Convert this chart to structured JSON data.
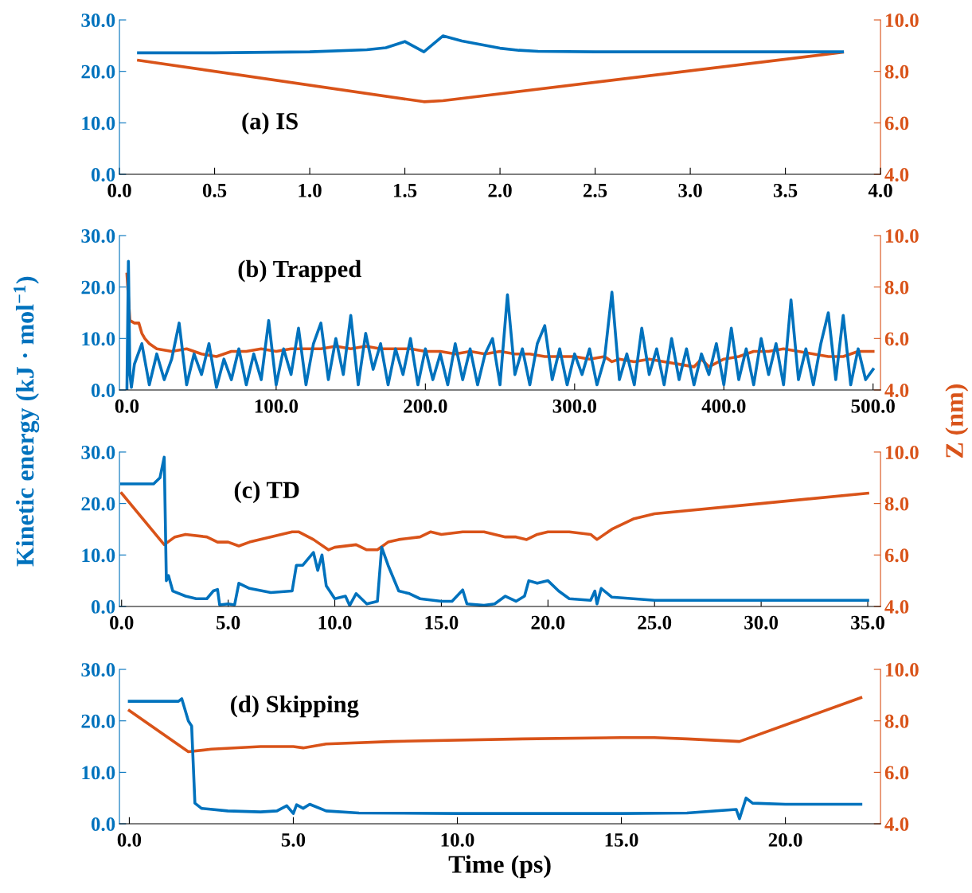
{
  "chart_data": [
    {
      "type": "line",
      "annotations": [
        "(a) IS"
      ],
      "xlim": [
        0,
        4
      ],
      "xticks": [
        {
          "value": 0,
          "label": "0.0"
        },
        0.5,
        {
          "value": 1,
          "label": "1.0"
        },
        1.5,
        {
          "value": 2,
          "label": "2.0"
        },
        2.5,
        {
          "value": 3,
          "label": "3.0"
        },
        3.5,
        {
          "value": 4,
          "label": "4.0"
        }
      ],
      "ylim": [
        0,
        30
      ],
      "yticks": [
        {
          "value": 0,
          "label": "0.0"
        },
        {
          "value": 10,
          "label": "10.0"
        },
        {
          "value": 20,
          "label": "20.0"
        },
        {
          "value": 30,
          "label": "30.0"
        }
      ],
      "y2lim": [
        4,
        10
      ],
      "y2ticks": [
        {
          "value": 4,
          "label": "4.0"
        },
        {
          "value": 6,
          "label": "6.0"
        },
        {
          "value": 8,
          "label": "8.0"
        },
        {
          "value": 10,
          "label": "10.0"
        }
      ],
      "grid": false,
      "series": [
        {
          "color": "#0072bd",
          "x": [
            0.1,
            0.5,
            1.0,
            1.3,
            1.4,
            1.5,
            1.6,
            1.7,
            1.8,
            1.9,
            2.0,
            2.1,
            2.2,
            2.5,
            3.0,
            3.8
          ],
          "values": [
            23.6,
            23.6,
            23.8,
            24.2,
            24.6,
            25.8,
            23.8,
            26.9,
            25.9,
            25.2,
            24.5,
            24.1,
            23.9,
            23.8,
            23.8,
            23.8
          ]
        },
        {
          "color": "#d95319",
          "axis": "y2",
          "x": [
            0.1,
            1.6,
            1.7,
            3.8
          ],
          "values": [
            8.43,
            6.82,
            6.86,
            8.74
          ]
        }
      ]
    },
    {
      "type": "line",
      "annotations": [
        "(b) Trapped"
      ],
      "xlim": [
        -5,
        505
      ],
      "xticks": [
        {
          "value": 0,
          "label": "0.0"
        },
        {
          "value": 100,
          "label": "100.0"
        },
        {
          "value": 200,
          "label": "200.0"
        },
        {
          "value": 300,
          "label": "300.0"
        },
        {
          "value": 400,
          "label": "400.0"
        },
        {
          "value": 500,
          "label": "500.0"
        }
      ],
      "ylim": [
        0,
        30
      ],
      "yticks": [
        {
          "value": 0,
          "label": "0.0"
        },
        {
          "value": 10,
          "label": "10.0"
        },
        {
          "value": 20,
          "label": "20.0"
        },
        {
          "value": 30,
          "label": "30.0"
        }
      ],
      "y2lim": [
        4,
        10
      ],
      "y2ticks": [
        {
          "value": 4,
          "label": "4.0"
        },
        {
          "value": 6,
          "label": "6.0"
        },
        {
          "value": 8,
          "label": "8.0"
        },
        {
          "value": 10,
          "label": "10.0"
        }
      ],
      "grid": false,
      "series": [
        {
          "color": "#0072bd",
          "x": [
            0,
            1,
            2,
            3,
            5,
            10,
            15,
            20,
            25,
            30,
            35,
            40,
            45,
            50,
            55,
            60,
            65,
            70,
            75,
            80,
            85,
            90,
            95,
            100,
            105,
            110,
            115,
            120,
            125,
            130,
            135,
            140,
            145,
            150,
            155,
            160,
            165,
            170,
            175,
            180,
            185,
            190,
            195,
            200,
            205,
            210,
            215,
            220,
            225,
            230,
            235,
            240,
            245,
            250,
            255,
            260,
            265,
            270,
            275,
            280,
            285,
            290,
            295,
            300,
            305,
            310,
            315,
            320,
            325,
            330,
            335,
            340,
            345,
            350,
            355,
            360,
            365,
            370,
            375,
            380,
            385,
            390,
            395,
            400,
            405,
            410,
            415,
            420,
            425,
            430,
            435,
            440,
            445,
            450,
            455,
            460,
            465,
            470,
            475,
            480,
            485,
            490,
            495,
            500
          ],
          "values": [
            0,
            25,
            3,
            0.5,
            5,
            9,
            1,
            7,
            2,
            6,
            13,
            1,
            7,
            3,
            9,
            0.5,
            6,
            2,
            8,
            1,
            7,
            2,
            13.5,
            1,
            8,
            3,
            12,
            1,
            9,
            13,
            2,
            10,
            3,
            14.5,
            1,
            11,
            4,
            9,
            1,
            8,
            3,
            10,
            1,
            8,
            2,
            7,
            1,
            9,
            2,
            8,
            1,
            7,
            10,
            1,
            18.5,
            3,
            8,
            1,
            9,
            12.5,
            2,
            8,
            1,
            7,
            3,
            8,
            1,
            6,
            19,
            2,
            7,
            1,
            12,
            3,
            8,
            1,
            10,
            2,
            8,
            1,
            7,
            3,
            9,
            1,
            12,
            2,
            8,
            1,
            10,
            3,
            9,
            1,
            17.5,
            2,
            8,
            1,
            9,
            15,
            2,
            14.5,
            1,
            8,
            2,
            4
          ]
        },
        {
          "color": "#d95319",
          "axis": "y2",
          "x": [
            0,
            2,
            5,
            8,
            10,
            12,
            15,
            20,
            30,
            40,
            50,
            60,
            70,
            80,
            90,
            100,
            110,
            120,
            130,
            140,
            150,
            160,
            170,
            180,
            190,
            200,
            210,
            220,
            230,
            240,
            250,
            260,
            270,
            280,
            290,
            300,
            310,
            320,
            325,
            330,
            340,
            350,
            360,
            370,
            380,
            385,
            390,
            400,
            410,
            420,
            430,
            440,
            450,
            460,
            470,
            480,
            490,
            500
          ],
          "values": [
            8.5,
            6.7,
            6.6,
            6.6,
            6.2,
            6.0,
            5.8,
            5.6,
            5.5,
            5.6,
            5.4,
            5.3,
            5.5,
            5.5,
            5.6,
            5.5,
            5.6,
            5.6,
            5.6,
            5.7,
            5.6,
            5.7,
            5.6,
            5.6,
            5.6,
            5.5,
            5.5,
            5.4,
            5.5,
            5.4,
            5.5,
            5.4,
            5.4,
            5.3,
            5.3,
            5.3,
            5.2,
            5.3,
            5.1,
            5.2,
            5.1,
            5.2,
            5.1,
            5.0,
            4.9,
            5.2,
            4.9,
            5.2,
            5.3,
            5.5,
            5.5,
            5.6,
            5.5,
            5.4,
            5.3,
            5.3,
            5.5,
            5.5
          ]
        }
      ]
    },
    {
      "type": "line",
      "annotations": [
        "(c) TD"
      ],
      "ylabel": "Kinetic energy (kJ · mol$^{−1}$)",
      "y2label": "Z (nm)",
      "xlim": [
        -0.1,
        35.6
      ],
      "xticks": [
        {
          "value": 0,
          "label": "0.0"
        },
        {
          "value": 5,
          "label": "5.0"
        },
        {
          "value": 10,
          "label": "10.0"
        },
        {
          "value": 15,
          "label": "15.0"
        },
        {
          "value": 20,
          "label": "20.0"
        },
        {
          "value": 25,
          "label": "25.0"
        },
        {
          "value": 30,
          "label": "30.0"
        },
        {
          "value": 35,
          "label": "35.0"
        }
      ],
      "ylim": [
        0,
        30
      ],
      "yticks": [
        {
          "value": 0,
          "label": "0.0"
        },
        {
          "value": 10,
          "label": "10.0"
        },
        {
          "value": 20,
          "label": "20.0"
        },
        {
          "value": 30,
          "label": "30.0"
        }
      ],
      "y2lim": [
        4,
        10
      ],
      "y2ticks": [
        {
          "value": 4,
          "label": "4.0"
        },
        {
          "value": 6,
          "label": "6.0"
        },
        {
          "value": 8,
          "label": "8.0"
        },
        {
          "value": 10,
          "label": "10.0"
        }
      ],
      "grid": false,
      "series": [
        {
          "color": "#0072bd",
          "x": [
            0,
            1.5,
            1.8,
            2.0,
            2.1,
            2.2,
            2.4,
            3,
            3.5,
            4,
            4.3,
            4.5,
            4.6,
            5,
            5.3,
            5.5,
            6,
            7,
            8,
            8.2,
            8.5,
            9,
            9.2,
            9.4,
            9.6,
            10,
            10.5,
            10.7,
            11,
            11.5,
            12,
            12.2,
            12.5,
            13,
            13.5,
            14,
            15,
            15.5,
            16,
            16.2,
            17,
            17.5,
            18,
            18.5,
            18.9,
            19.1,
            19.5,
            20,
            20.5,
            21,
            22,
            22.2,
            22.3,
            22.5,
            23,
            24,
            25,
            30,
            35
          ],
          "values": [
            23.8,
            23.8,
            25,
            29,
            5,
            6,
            3,
            2,
            1.5,
            1.5,
            3,
            3.3,
            0.3,
            0.5,
            0.3,
            4.5,
            3.5,
            2.7,
            3,
            8,
            8,
            10.5,
            7,
            10,
            4,
            1.5,
            2,
            0.2,
            2.5,
            0.5,
            1,
            11.5,
            8,
            3,
            2.5,
            1.5,
            1,
            1,
            3.2,
            0.5,
            0.2,
            0.5,
            2,
            1,
            2,
            5,
            4.5,
            5,
            3,
            1.5,
            1.2,
            3,
            0.5,
            3.5,
            1.8,
            1.5,
            1.2,
            1.2,
            1.2
          ]
        },
        {
          "color": "#d95319",
          "axis": "y2",
          "x": [
            0,
            2,
            2.5,
            3,
            4,
            4.5,
            5,
            5.5,
            6,
            8,
            8.3,
            9,
            9.7,
            10,
            11,
            11.5,
            12,
            12.5,
            13,
            14,
            14.5,
            15,
            16,
            17,
            18,
            18.5,
            19,
            19.5,
            20,
            21,
            22,
            22.3,
            23,
            24,
            25,
            30,
            35
          ],
          "values": [
            8.4,
            6.4,
            6.7,
            6.8,
            6.7,
            6.5,
            6.5,
            6.35,
            6.5,
            6.9,
            6.9,
            6.6,
            6.2,
            6.3,
            6.4,
            6.2,
            6.2,
            6.5,
            6.6,
            6.7,
            6.9,
            6.8,
            6.9,
            6.9,
            6.7,
            6.7,
            6.6,
            6.8,
            6.9,
            6.9,
            6.8,
            6.6,
            7.0,
            7.4,
            7.6,
            8.0,
            8.4
          ]
        }
      ]
    },
    {
      "type": "line",
      "annotations": [
        "(d) Skipping"
      ],
      "xlabel": "Time (ps)",
      "xlim": [
        -0.3,
        22.9
      ],
      "xticks": [
        {
          "value": 0,
          "label": "0.0"
        },
        {
          "value": 5,
          "label": "5.0"
        },
        {
          "value": 10,
          "label": "10.0"
        },
        {
          "value": 15,
          "label": "15.0"
        },
        {
          "value": 20,
          "label": "20.0"
        }
      ],
      "ylim": [
        0,
        30
      ],
      "yticks": [
        {
          "value": 0,
          "label": "0.0"
        },
        {
          "value": 10,
          "label": "10.0"
        },
        {
          "value": 20,
          "label": "20.0"
        },
        {
          "value": 30,
          "label": "30.0"
        }
      ],
      "y2lim": [
        4,
        10
      ],
      "y2ticks": [
        {
          "value": 4,
          "label": "4.0"
        },
        {
          "value": 6,
          "label": "6.0"
        },
        {
          "value": 8,
          "label": "8.0"
        },
        {
          "value": 10,
          "label": "10.0"
        }
      ],
      "grid": false,
      "series": [
        {
          "color": "#0072bd",
          "x": [
            0,
            1.5,
            1.6,
            1.8,
            1.9,
            2.0,
            2.2,
            3,
            4,
            4.5,
            4.8,
            5.0,
            5.1,
            5.3,
            5.5,
            6,
            7,
            10,
            15,
            17,
            18.5,
            18.6,
            18.8,
            19,
            20,
            22.3
          ],
          "values": [
            23.8,
            23.8,
            24.3,
            20,
            19,
            4,
            3,
            2.5,
            2.3,
            2.5,
            3.5,
            2,
            3.7,
            3,
            3.8,
            2.5,
            2.1,
            2,
            2,
            2.1,
            2.8,
            1,
            5,
            4,
            3.8,
            3.8
          ]
        },
        {
          "color": "#d95319",
          "axis": "y2",
          "x": [
            0,
            1.8,
            2.5,
            4,
            5.0,
            5.3,
            6,
            8,
            12,
            15,
            16,
            17,
            18.6,
            22.3
          ],
          "values": [
            8.4,
            6.8,
            6.9,
            7.0,
            7.0,
            6.95,
            7.1,
            7.2,
            7.3,
            7.35,
            7.35,
            7.3,
            7.2,
            8.9
          ]
        }
      ]
    }
  ]
}
